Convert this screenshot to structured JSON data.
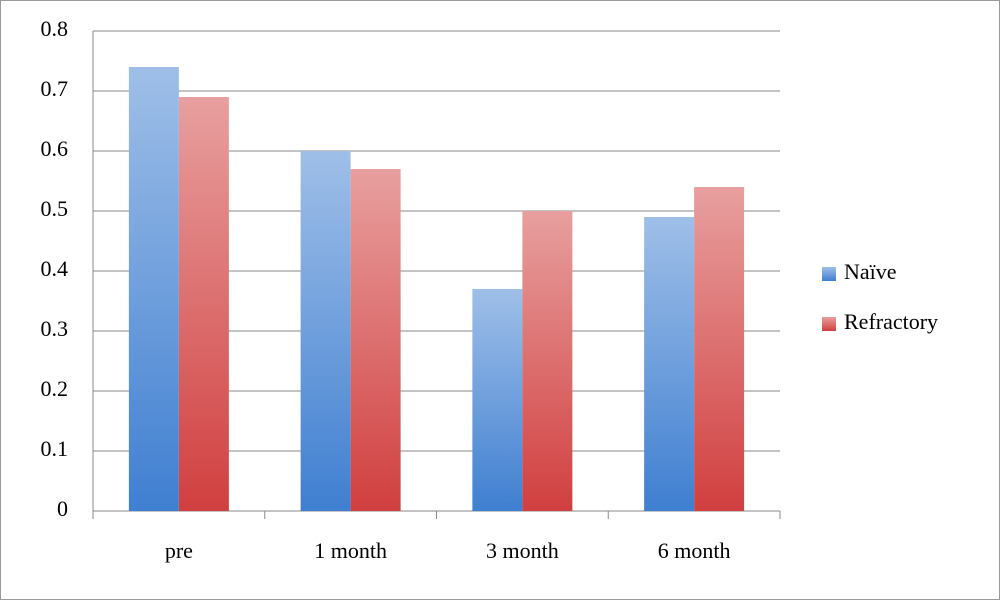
{
  "chart_data": {
    "type": "bar",
    "categories": [
      "pre",
      "1 month",
      "3 month",
      "6 month"
    ],
    "series": [
      {
        "name": "Naïve",
        "color": "#3f7fd1",
        "values": [
          0.74,
          0.6,
          0.37,
          0.49
        ]
      },
      {
        "name": "Refractory",
        "color": "#d13f3f",
        "values": [
          0.69,
          0.57,
          0.5,
          0.54
        ]
      }
    ],
    "ylim": [
      0,
      0.8
    ],
    "yticks": [
      0,
      0.1,
      0.2,
      0.3,
      0.4,
      0.5,
      0.6,
      0.7,
      0.8
    ],
    "grid": true,
    "legend": "right"
  }
}
